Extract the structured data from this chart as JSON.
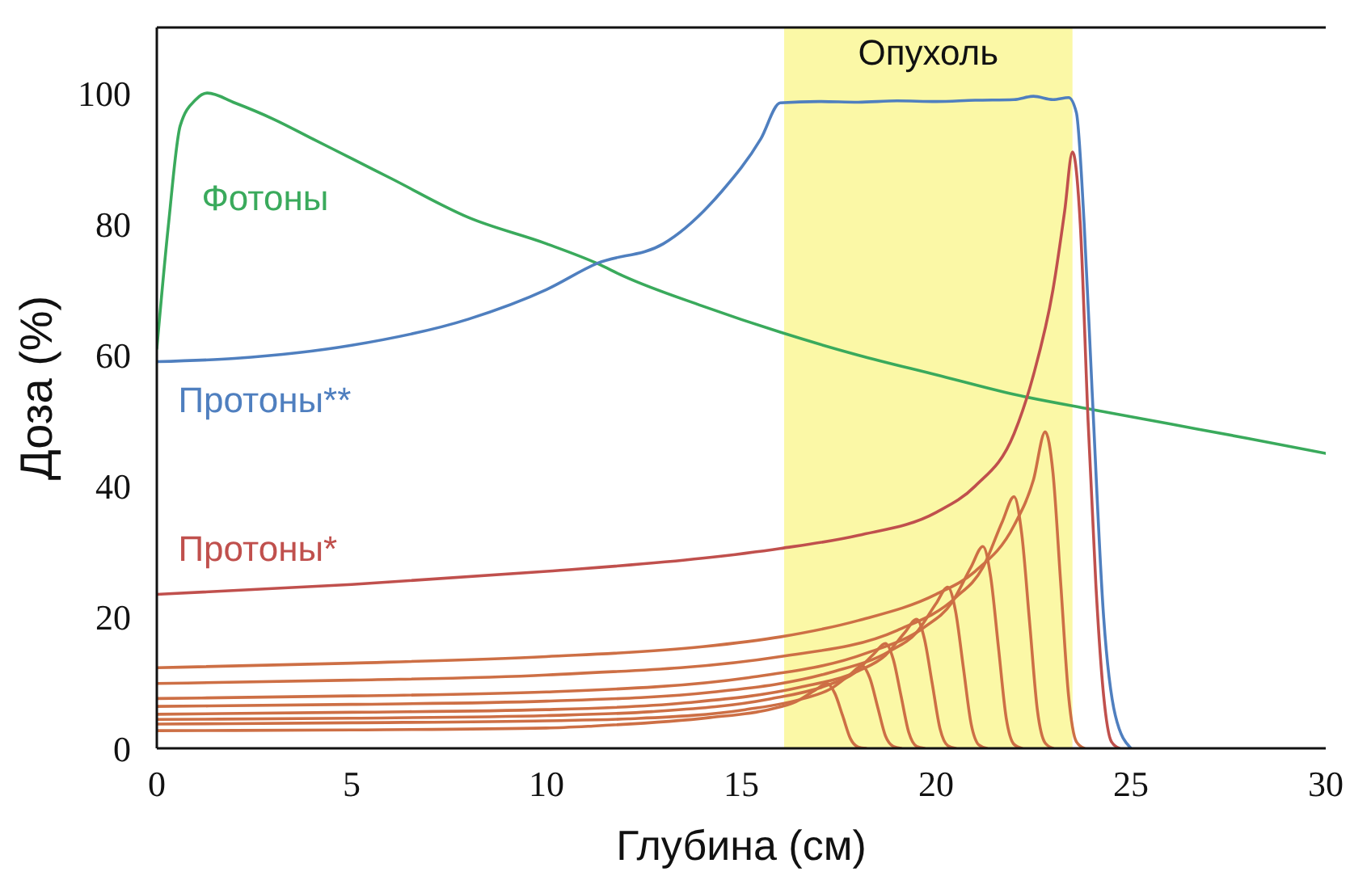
{
  "chart_data": {
    "type": "line",
    "xlabel": "Глубина (см)",
    "ylabel": "Доза (%)",
    "xlim": [
      0,
      30
    ],
    "xticks": [
      0,
      5,
      10,
      15,
      20,
      25,
      30
    ],
    "ylim": [
      0,
      110
    ],
    "yticks": [
      0,
      20,
      40,
      60,
      80,
      100
    ],
    "grid": false,
    "legend": false,
    "marker": "none",
    "line_style": "solid",
    "bands": [
      {
        "axis": "x",
        "from": 16.1,
        "to": 23.5,
        "label": "Опухоль",
        "color": "#fbf8a6"
      }
    ],
    "series": [
      {
        "name": "Фотоны",
        "color": "#3aaa5c",
        "x": [
          0,
          0.3,
          0.6,
          1.0,
          1.3,
          2,
          3,
          4,
          5,
          6,
          8,
          10,
          11.3,
          12,
          14,
          16,
          18,
          20,
          22,
          24,
          26,
          28,
          30
        ],
        "values": [
          61,
          80,
          95,
          99,
          100,
          98.5,
          96,
          93,
          90,
          87,
          81,
          77,
          74,
          72,
          67.5,
          63.5,
          60,
          57,
          54,
          51.7,
          49.5,
          47.3,
          45
        ]
      },
      {
        "name": "Протоны**",
        "color": "#4f7fbf",
        "x": [
          0,
          2,
          5,
          8,
          10,
          11.3,
          13,
          14.5,
          15.5,
          16,
          17,
          18,
          19,
          20,
          21,
          22,
          22.5,
          23,
          23.4,
          23.6,
          23.8,
          24,
          24.3,
          24.6,
          25
        ],
        "values": [
          59,
          59.5,
          61.5,
          65.5,
          70,
          74,
          77,
          85,
          93,
          98.5,
          98.7,
          98.6,
          98.8,
          98.7,
          98.9,
          99,
          99.5,
          99,
          99.3,
          97,
          80,
          55,
          20,
          5,
          0
        ]
      },
      {
        "name": "Протоны*",
        "color": "#c0504d",
        "x": [
          0,
          5,
          10,
          14,
          16,
          18,
          20,
          21,
          22,
          22.5,
          23,
          23.3,
          23.5,
          23.7,
          23.9,
          24.1,
          24.3,
          24.5,
          24.7
        ],
        "values": [
          23.5,
          25,
          27,
          29,
          30.5,
          32.5,
          36,
          40,
          48,
          57,
          70,
          82,
          91,
          80,
          50,
          25,
          8,
          1,
          0
        ]
      },
      {
        "color": "#cd6f45",
        "x": [
          0,
          5,
          10,
          11.2,
          14.2,
          15.7,
          16.4,
          16.9,
          17.2,
          17.4,
          17.6,
          17.8,
          18,
          18.2
        ],
        "values": [
          2.7,
          2.8,
          3.1,
          3.4,
          4.7,
          5.9,
          7.1,
          8.9,
          9.9,
          8.4,
          5,
          1.5,
          0.2,
          0
        ]
      },
      {
        "color": "#cd6f45",
        "x": [
          0,
          5,
          10,
          12.1,
          15.1,
          16.6,
          17.3,
          17.8,
          18.1,
          18.3,
          18.5,
          18.7,
          18.9,
          19.1
        ],
        "values": [
          3.7,
          3.9,
          4.2,
          4.5,
          5.9,
          7.6,
          9.1,
          11.3,
          12.6,
          10.7,
          6.3,
          1.9,
          0.3,
          0
        ]
      },
      {
        "color": "#cd6f45",
        "x": [
          0,
          5,
          10,
          12.7,
          15.7,
          17.2,
          17.9,
          18.4,
          18.7,
          18.9,
          19.1,
          19.3,
          19.5,
          19.7
        ],
        "values": [
          4.4,
          4.6,
          5,
          5.6,
          7.5,
          9.6,
          11.5,
          14.4,
          16,
          13.6,
          8,
          2.4,
          0.3,
          0
        ]
      },
      {
        "color": "#cd6f45",
        "x": [
          0,
          5,
          10,
          13.5,
          16.5,
          18,
          18.7,
          19.2,
          19.5,
          19.7,
          19.9,
          20.1,
          20.3,
          20.5
        ],
        "values": [
          5.2,
          5.5,
          5.9,
          6.9,
          9.3,
          11.8,
          14.2,
          17.7,
          19.7,
          16.7,
          9.9,
          3,
          0.4,
          0
        ]
      },
      {
        "color": "#cd6f45",
        "x": [
          0,
          5,
          10,
          14.3,
          17.3,
          18.8,
          19.5,
          20,
          20.3,
          20.5,
          20.7,
          20.9,
          21.1,
          21.3
        ],
        "values": [
          6.4,
          6.7,
          7.2,
          8.6,
          11.6,
          14.8,
          17.7,
          22.1,
          24.6,
          20.9,
          12.3,
          3.7,
          0.5,
          0
        ]
      },
      {
        "color": "#cd6f45",
        "x": [
          0,
          5,
          10,
          15.2,
          18.2,
          19.7,
          20.4,
          20.9,
          21.2,
          21.4,
          21.6,
          21.8,
          22,
          22.2
        ],
        "values": [
          7.6,
          8,
          8.6,
          10.8,
          14.5,
          18.5,
          22.2,
          27.7,
          30.8,
          26.2,
          15.4,
          4.6,
          0.6,
          0
        ]
      },
      {
        "color": "#cd6f45",
        "x": [
          0,
          5,
          10,
          16,
          19,
          20.5,
          21.2,
          21.7,
          22,
          22.2,
          22.4,
          22.6,
          22.8,
          23
        ],
        "values": [
          9.9,
          10.4,
          11.2,
          14,
          18,
          23,
          27.6,
          34.6,
          38.4,
          32.6,
          19.2,
          5.8,
          0.8,
          0
        ]
      },
      {
        "color": "#cd6f45",
        "x": [
          0,
          5,
          10,
          14,
          16,
          18,
          20,
          21,
          22,
          22.5,
          22.8,
          23,
          23.2,
          23.4,
          23.6,
          23.8
        ],
        "values": [
          12.3,
          13,
          14,
          15.5,
          17,
          19.5,
          23.5,
          27,
          34,
          41,
          48.3,
          42,
          25,
          8,
          1,
          0
        ]
      }
    ]
  }
}
